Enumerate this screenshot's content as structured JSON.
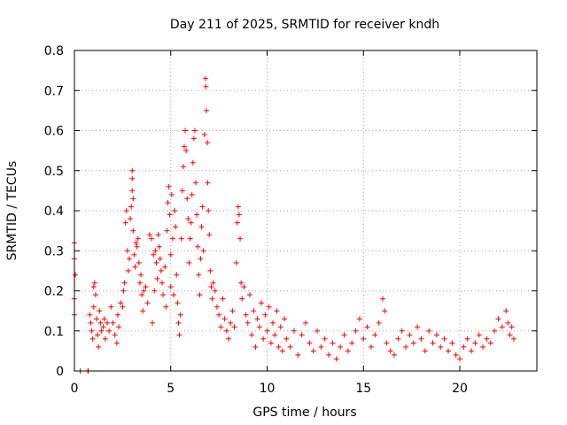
{
  "chart_data": {
    "type": "scatter",
    "title": "Day 211 of 2025, SRMTID for receiver kndh",
    "xlabel": "GPS time / hours",
    "ylabel": "SRMTID / TECUs",
    "xlim": [
      0,
      24
    ],
    "ylim": [
      0,
      0.8
    ],
    "xticks": [
      0,
      5,
      10,
      15,
      20
    ],
    "xtick_labels": [
      "0",
      "5",
      "10",
      "15",
      "20"
    ],
    "yticks": [
      0,
      0.1,
      0.2,
      0.3,
      0.4,
      0.5,
      0.6,
      0.7,
      0.8
    ],
    "ytick_labels": [
      "0",
      "0.1",
      "0.2",
      "0.3",
      "0.4",
      "0.5",
      "0.6",
      "0.7",
      "0.8"
    ],
    "grid": true,
    "marker": "plus",
    "color": "#ff0000",
    "series": [
      {
        "name": "SRMTID",
        "points": [
          [
            0.0,
            0.32
          ],
          [
            0.0,
            0.28
          ],
          [
            0.0,
            0.18
          ],
          [
            0.0,
            0.14
          ],
          [
            0.05,
            0.24
          ],
          [
            0.3,
            0.0
          ],
          [
            0.7,
            0.0
          ],
          [
            0.72,
            0.0
          ],
          [
            0.8,
            0.14
          ],
          [
            0.85,
            0.12
          ],
          [
            0.9,
            0.1
          ],
          [
            0.95,
            0.08
          ],
          [
            1.0,
            0.16
          ],
          [
            1.0,
            0.21
          ],
          [
            1.05,
            0.22
          ],
          [
            1.1,
            0.19
          ],
          [
            1.15,
            0.13
          ],
          [
            1.2,
            0.09
          ],
          [
            1.25,
            0.06
          ],
          [
            1.3,
            0.15
          ],
          [
            1.35,
            0.12
          ],
          [
            1.4,
            0.1
          ],
          [
            1.5,
            0.11
          ],
          [
            1.55,
            0.13
          ],
          [
            1.6,
            0.08
          ],
          [
            1.7,
            0.12
          ],
          [
            1.8,
            0.1
          ],
          [
            1.9,
            0.16
          ],
          [
            2.0,
            0.12
          ],
          [
            2.1,
            0.09
          ],
          [
            2.2,
            0.07
          ],
          [
            2.25,
            0.14
          ],
          [
            2.3,
            0.11
          ],
          [
            2.4,
            0.17
          ],
          [
            2.5,
            0.16
          ],
          [
            2.55,
            0.2
          ],
          [
            2.6,
            0.22
          ],
          [
            2.65,
            0.37
          ],
          [
            2.7,
            0.4
          ],
          [
            2.75,
            0.3
          ],
          [
            2.8,
            0.25
          ],
          [
            2.85,
            0.28
          ],
          [
            2.9,
            0.38
          ],
          [
            2.95,
            0.41
          ],
          [
            3.0,
            0.5
          ],
          [
            3.0,
            0.48
          ],
          [
            3.0,
            0.45
          ],
          [
            3.05,
            0.43
          ],
          [
            3.05,
            0.35
          ],
          [
            3.1,
            0.29
          ],
          [
            3.15,
            0.26
          ],
          [
            3.2,
            0.32
          ],
          [
            3.25,
            0.31
          ],
          [
            3.3,
            0.33
          ],
          [
            3.35,
            0.27
          ],
          [
            3.4,
            0.22
          ],
          [
            3.45,
            0.24
          ],
          [
            3.5,
            0.19
          ],
          [
            3.55,
            0.15
          ],
          [
            3.6,
            0.2
          ],
          [
            3.7,
            0.21
          ],
          [
            3.8,
            0.17
          ],
          [
            3.9,
            0.34
          ],
          [
            4.0,
            0.33
          ],
          [
            4.05,
            0.12
          ],
          [
            4.1,
            0.29
          ],
          [
            4.15,
            0.2
          ],
          [
            4.2,
            0.3
          ],
          [
            4.25,
            0.27
          ],
          [
            4.3,
            0.23
          ],
          [
            4.35,
            0.34
          ],
          [
            4.4,
            0.31
          ],
          [
            4.45,
            0.28
          ],
          [
            4.5,
            0.25
          ],
          [
            4.55,
            0.22
          ],
          [
            4.6,
            0.19
          ],
          [
            4.7,
            0.26
          ],
          [
            4.75,
            0.16
          ],
          [
            4.8,
            0.35
          ],
          [
            4.85,
            0.42
          ],
          [
            4.9,
            0.46
          ],
          [
            4.95,
            0.39
          ],
          [
            5.0,
            0.29
          ],
          [
            5.0,
            0.21
          ],
          [
            5.05,
            0.44
          ],
          [
            5.1,
            0.33
          ],
          [
            5.15,
            0.19
          ],
          [
            5.2,
            0.4
          ],
          [
            5.25,
            0.36
          ],
          [
            5.3,
            0.24
          ],
          [
            5.35,
            0.17
          ],
          [
            5.4,
            0.12
          ],
          [
            5.45,
            0.09
          ],
          [
            5.5,
            0.14
          ],
          [
            5.55,
            0.33
          ],
          [
            5.6,
            0.45
          ],
          [
            5.65,
            0.51
          ],
          [
            5.7,
            0.56
          ],
          [
            5.75,
            0.6
          ],
          [
            5.8,
            0.55
          ],
          [
            5.85,
            0.43
          ],
          [
            5.9,
            0.38
          ],
          [
            5.95,
            0.27
          ],
          [
            6.0,
            0.33
          ],
          [
            6.05,
            0.37
          ],
          [
            6.1,
            0.44
          ],
          [
            6.15,
            0.52
          ],
          [
            6.2,
            0.58
          ],
          [
            6.25,
            0.6
          ],
          [
            6.3,
            0.47
          ],
          [
            6.35,
            0.39
          ],
          [
            6.4,
            0.31
          ],
          [
            6.45,
            0.24
          ],
          [
            6.5,
            0.19
          ],
          [
            6.55,
            0.28
          ],
          [
            6.6,
            0.36
          ],
          [
            6.65,
            0.41
          ],
          [
            6.7,
            0.3
          ],
          [
            6.75,
            0.59
          ],
          [
            6.8,
            0.73
          ],
          [
            6.82,
            0.71
          ],
          [
            6.85,
            0.65
          ],
          [
            6.9,
            0.57
          ],
          [
            6.92,
            0.47
          ],
          [
            6.95,
            0.4
          ],
          [
            7.0,
            0.34
          ],
          [
            7.05,
            0.25
          ],
          [
            7.1,
            0.21
          ],
          [
            7.15,
            0.18
          ],
          [
            7.2,
            0.22
          ],
          [
            7.3,
            0.2
          ],
          [
            7.4,
            0.16
          ],
          [
            7.5,
            0.14
          ],
          [
            7.6,
            0.11
          ],
          [
            7.7,
            0.18
          ],
          [
            7.8,
            0.13
          ],
          [
            7.9,
            0.1
          ],
          [
            8.0,
            0.08
          ],
          [
            8.1,
            0.12
          ],
          [
            8.2,
            0.15
          ],
          [
            8.3,
            0.11
          ],
          [
            8.4,
            0.27
          ],
          [
            8.45,
            0.37
          ],
          [
            8.5,
            0.41
          ],
          [
            8.55,
            0.39
          ],
          [
            8.6,
            0.33
          ],
          [
            8.65,
            0.22
          ],
          [
            8.7,
            0.18
          ],
          [
            8.8,
            0.21
          ],
          [
            8.9,
            0.14
          ],
          [
            9.0,
            0.12
          ],
          [
            9.1,
            0.19
          ],
          [
            9.2,
            0.09
          ],
          [
            9.3,
            0.15
          ],
          [
            9.4,
            0.06
          ],
          [
            9.5,
            0.13
          ],
          [
            9.6,
            0.11
          ],
          [
            9.7,
            0.17
          ],
          [
            9.8,
            0.08
          ],
          [
            9.9,
            0.14
          ],
          [
            10.0,
            0.1
          ],
          [
            10.1,
            0.16
          ],
          [
            10.2,
            0.07
          ],
          [
            10.3,
            0.12
          ],
          [
            10.4,
            0.09
          ],
          [
            10.5,
            0.15
          ],
          [
            10.6,
            0.06
          ],
          [
            10.7,
            0.11
          ],
          [
            10.8,
            0.05
          ],
          [
            10.9,
            0.13
          ],
          [
            11.0,
            0.08
          ],
          [
            11.2,
            0.06
          ],
          [
            11.4,
            0.1
          ],
          [
            11.6,
            0.04
          ],
          [
            11.8,
            0.09
          ],
          [
            12.0,
            0.12
          ],
          [
            12.2,
            0.07
          ],
          [
            12.4,
            0.05
          ],
          [
            12.6,
            0.1
          ],
          [
            12.8,
            0.06
          ],
          [
            13.0,
            0.08
          ],
          [
            13.2,
            0.04
          ],
          [
            13.4,
            0.07
          ],
          [
            13.6,
            0.03
          ],
          [
            13.8,
            0.06
          ],
          [
            14.0,
            0.09
          ],
          [
            14.2,
            0.05
          ],
          [
            14.4,
            0.07
          ],
          [
            14.6,
            0.1
          ],
          [
            14.8,
            0.13
          ],
          [
            15.0,
            0.08
          ],
          [
            15.2,
            0.11
          ],
          [
            15.4,
            0.06
          ],
          [
            15.6,
            0.09
          ],
          [
            15.8,
            0.12
          ],
          [
            16.0,
            0.18
          ],
          [
            16.1,
            0.15
          ],
          [
            16.2,
            0.07
          ],
          [
            16.4,
            0.05
          ],
          [
            16.6,
            0.04
          ],
          [
            16.8,
            0.08
          ],
          [
            17.0,
            0.1
          ],
          [
            17.2,
            0.06
          ],
          [
            17.4,
            0.09
          ],
          [
            17.6,
            0.07
          ],
          [
            17.8,
            0.11
          ],
          [
            18.0,
            0.08
          ],
          [
            18.2,
            0.05
          ],
          [
            18.4,
            0.1
          ],
          [
            18.6,
            0.07
          ],
          [
            18.8,
            0.09
          ],
          [
            19.0,
            0.06
          ],
          [
            19.2,
            0.08
          ],
          [
            19.4,
            0.05
          ],
          [
            19.6,
            0.07
          ],
          [
            19.8,
            0.04
          ],
          [
            20.0,
            0.03
          ],
          [
            20.2,
            0.06
          ],
          [
            20.4,
            0.08
          ],
          [
            20.6,
            0.05
          ],
          [
            20.8,
            0.07
          ],
          [
            21.0,
            0.09
          ],
          [
            21.2,
            0.06
          ],
          [
            21.4,
            0.08
          ],
          [
            21.6,
            0.07
          ],
          [
            21.8,
            0.1
          ],
          [
            22.0,
            0.13
          ],
          [
            22.2,
            0.11
          ],
          [
            22.4,
            0.15
          ],
          [
            22.5,
            0.12
          ],
          [
            22.6,
            0.09
          ],
          [
            22.7,
            0.11
          ],
          [
            22.8,
            0.08
          ]
        ]
      }
    ]
  }
}
